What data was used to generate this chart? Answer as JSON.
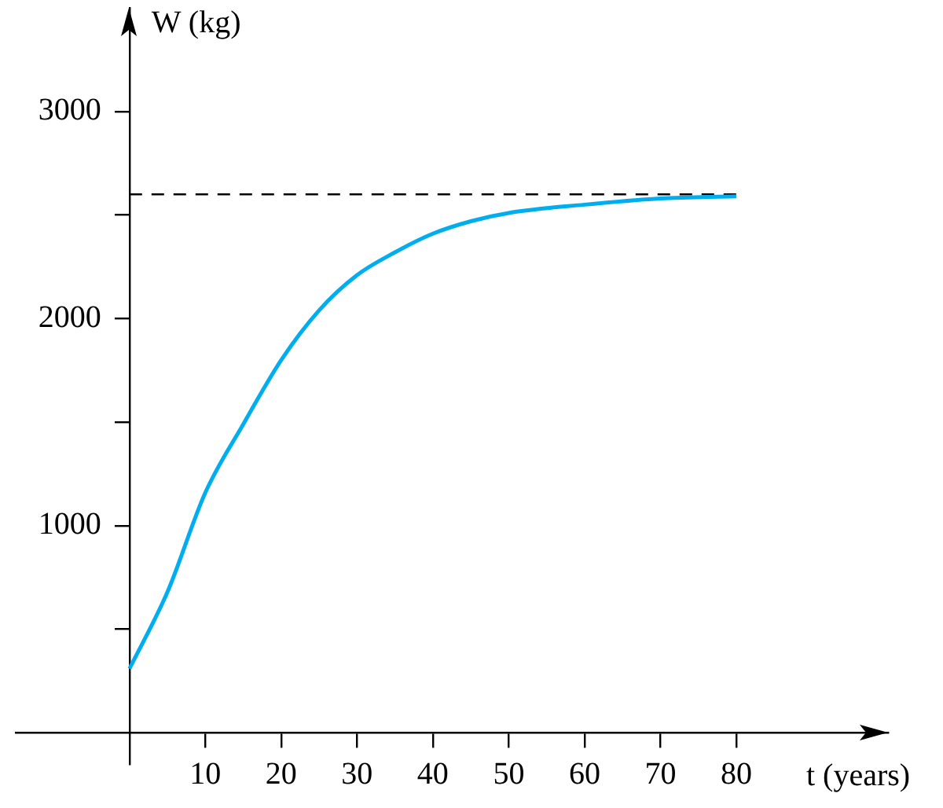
{
  "chart_data": {
    "type": "line",
    "xlabel": "t (years)",
    "ylabel": "W (kg)",
    "x": [
      0,
      5,
      10,
      15,
      20,
      25,
      30,
      35,
      40,
      45,
      50,
      60,
      70,
      80
    ],
    "series": [
      {
        "color": "#00aeef",
        "values": [
          310,
          680,
          1160,
          1490,
          1800,
          2040,
          2210,
          2320,
          2410,
          2470,
          2510,
          2550,
          2580,
          2590
        ]
      }
    ],
    "xlim": [
      -15,
      100
    ],
    "xticks": [
      10,
      20,
      30,
      40,
      50,
      60,
      70,
      80
    ],
    "ylim": [
      -150,
      3500
    ],
    "yticks": [
      {
        "value": 500,
        "label": null
      },
      1000,
      {
        "value": 1500,
        "label": null
      },
      2000,
      {
        "value": 2500,
        "label": null
      },
      3000
    ],
    "ref_lines": [
      {
        "axis": "y",
        "value": 2600,
        "line_style": "dashed",
        "color": "#000000"
      }
    ],
    "grid": false,
    "legend": false,
    "marker": "none",
    "line_style": "solid"
  }
}
